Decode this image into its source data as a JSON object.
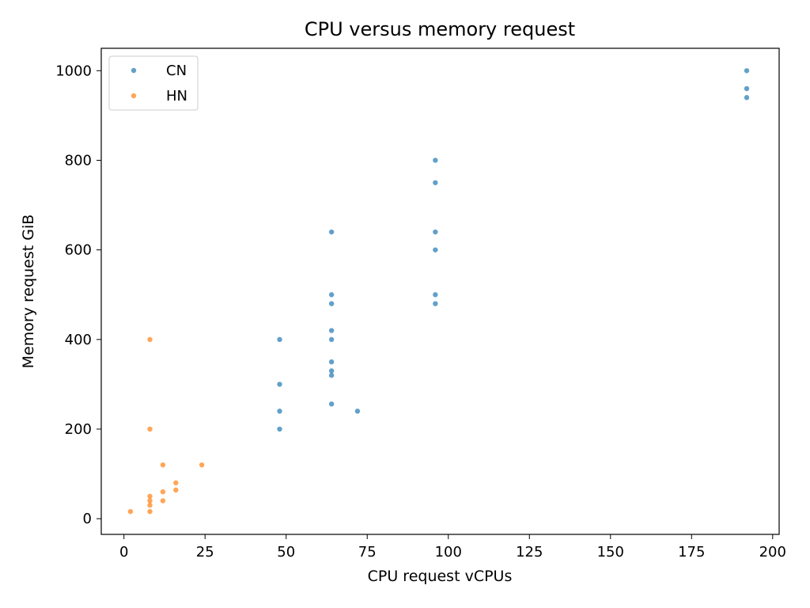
{
  "chart_data": {
    "type": "scatter",
    "title": "CPU versus memory request",
    "xlabel": "CPU request vCPUs",
    "ylabel": "Memory request GiB",
    "xlim": [
      -7,
      202
    ],
    "ylim": [
      -35,
      1050
    ],
    "xticks": [
      0,
      25,
      50,
      75,
      100,
      125,
      150,
      175,
      200
    ],
    "yticks": [
      0,
      200,
      400,
      600,
      800,
      1000
    ],
    "grid": false,
    "legend_position": "top-left",
    "series": [
      {
        "name": "CN",
        "color": "#1f77b4",
        "points": [
          [
            48,
            200
          ],
          [
            48,
            240
          ],
          [
            48,
            300
          ],
          [
            48,
            400
          ],
          [
            64,
            256
          ],
          [
            64,
            320
          ],
          [
            64,
            330
          ],
          [
            64,
            350
          ],
          [
            64,
            400
          ],
          [
            64,
            420
          ],
          [
            64,
            480
          ],
          [
            64,
            500
          ],
          [
            64,
            640
          ],
          [
            72,
            240
          ],
          [
            96,
            480
          ],
          [
            96,
            500
          ],
          [
            96,
            600
          ],
          [
            96,
            640
          ],
          [
            96,
            750
          ],
          [
            96,
            800
          ],
          [
            192,
            940
          ],
          [
            192,
            960
          ],
          [
            192,
            1000
          ]
        ]
      },
      {
        "name": "HN",
        "color": "#ff7f0e",
        "points": [
          [
            2,
            16
          ],
          [
            8,
            16
          ],
          [
            8,
            30
          ],
          [
            8,
            40
          ],
          [
            8,
            50
          ],
          [
            8,
            200
          ],
          [
            8,
            400
          ],
          [
            12,
            40
          ],
          [
            12,
            60
          ],
          [
            12,
            120
          ],
          [
            16,
            64
          ],
          [
            16,
            80
          ],
          [
            24,
            120
          ]
        ]
      }
    ]
  }
}
